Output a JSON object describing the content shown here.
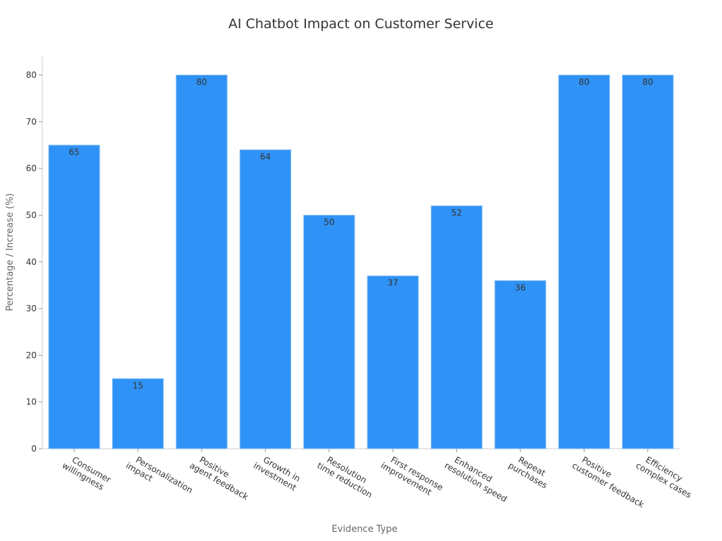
{
  "chart_data": {
    "type": "bar",
    "title": "AI Chatbot Impact on Customer Service",
    "x_label": "Evidence Type",
    "y_label": "Percentage / Increase (%)",
    "categories": [
      "Consumer\nwillingness",
      "Personalization\nimpact",
      "Positive\nagent feedback",
      "Growth in\ninvestment",
      "Resolution\ntime reduction",
      "First response\nimprovement",
      "Enhanced\nresolution speed",
      "Repeat\npurchases",
      "Positive\ncustomer feedback",
      "Efficiency\ncomplex cases"
    ],
    "values": [
      65,
      15,
      80,
      64,
      50,
      37,
      52,
      36,
      80,
      80
    ],
    "color": "#2f92f6",
    "ylim": [
      0,
      84
    ],
    "yticks": [
      0,
      10,
      20,
      30,
      40,
      50,
      60,
      70,
      80
    ],
    "grid": false
  }
}
